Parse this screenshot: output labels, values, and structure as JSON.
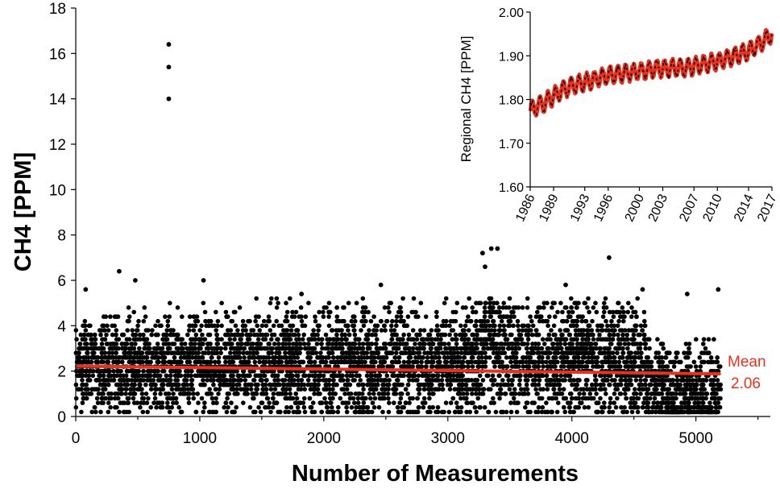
{
  "colors": {
    "points": "#000000",
    "trend": "#e8321f",
    "inset_line": "#e8321f",
    "inset_points": "#000000"
  },
  "chart_data": [
    {
      "type": "scatter",
      "xlabel": "Number of Measurements",
      "ylabel": "CH4 [PPM]",
      "xlim": [
        0,
        5600
      ],
      "ylim": [
        0,
        18
      ],
      "xticks": [
        "0",
        "1000",
        "2000",
        "3000",
        "4000",
        "5000"
      ],
      "yticks": [
        "0",
        "2",
        "4",
        "6",
        "8",
        "10",
        "12",
        "14",
        "16",
        "18"
      ],
      "n_points": 5200,
      "bands": [
        {
          "x": [
            0,
            700
          ],
          "mean": 2.2,
          "spread": 1.0
        },
        {
          "x": [
            700,
            1700
          ],
          "mean": 2.3,
          "spread": 1.1
        },
        {
          "x": [
            1700,
            3250
          ],
          "mean": 2.3,
          "spread": 1.2
        },
        {
          "x": [
            3250,
            3500
          ],
          "mean": 3.2,
          "spread": 1.5
        },
        {
          "x": [
            3500,
            4600
          ],
          "mean": 2.5,
          "spread": 1.2
        },
        {
          "x": [
            4600,
            4750
          ],
          "mean": 1.4,
          "spread": 0.9
        },
        {
          "x": [
            4750,
            5200
          ],
          "mean": 1.0,
          "spread": 1.0
        }
      ],
      "highlighted_points": [
        {
          "x": 750,
          "y": 16.4
        },
        {
          "x": 750,
          "y": 15.4
        },
        {
          "x": 750,
          "y": 14.0
        },
        {
          "x": 3350,
          "y": 7.4
        },
        {
          "x": 3400,
          "y": 7.4
        },
        {
          "x": 3280,
          "y": 7.2
        },
        {
          "x": 4300,
          "y": 7.0
        },
        {
          "x": 350,
          "y": 6.4
        },
        {
          "x": 1030,
          "y": 6.0
        },
        {
          "x": 480,
          "y": 6.0
        },
        {
          "x": 3300,
          "y": 6.6
        },
        {
          "x": 2460,
          "y": 5.8
        },
        {
          "x": 3950,
          "y": 5.8
        },
        {
          "x": 4570,
          "y": 5.6
        },
        {
          "x": 80,
          "y": 5.6
        },
        {
          "x": 5180,
          "y": 5.6
        },
        {
          "x": 1820,
          "y": 5.4
        },
        {
          "x": 4930,
          "y": 5.4
        }
      ],
      "trend_line": {
        "name": "Mean",
        "x": [
          0,
          5200
        ],
        "y": [
          2.22,
          1.88
        ]
      },
      "annotation": [
        "Mean",
        "2.06"
      ],
      "grid": false
    },
    {
      "type": "line",
      "ylabel": "Regional CH4 [PPM]",
      "xlim": [
        1986,
        2017
      ],
      "ylim": [
        1.6,
        2.0
      ],
      "xticks": [
        "1986",
        "1989",
        "1993",
        "1996",
        "2000",
        "2003",
        "2007",
        "2010",
        "2014",
        "2017"
      ],
      "yticks": [
        "1.60",
        "1.70",
        "1.80",
        "1.90",
        "2.00"
      ],
      "trend": [
        [
          1986,
          1.775
        ],
        [
          1988,
          1.795
        ],
        [
          1990,
          1.82
        ],
        [
          1992,
          1.835
        ],
        [
          1994,
          1.845
        ],
        [
          1996,
          1.855
        ],
        [
          1998,
          1.86
        ],
        [
          2000,
          1.865
        ],
        [
          2002,
          1.87
        ],
        [
          2004,
          1.872
        ],
        [
          2006,
          1.873
        ],
        [
          2008,
          1.88
        ],
        [
          2010,
          1.888
        ],
        [
          2012,
          1.898
        ],
        [
          2014,
          1.91
        ],
        [
          2016,
          1.935
        ],
        [
          2017,
          1.95
        ]
      ],
      "seasonal_amplitude": 0.018,
      "grid": false
    }
  ]
}
